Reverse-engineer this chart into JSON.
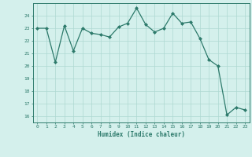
{
  "x": [
    0,
    1,
    2,
    3,
    4,
    5,
    6,
    7,
    8,
    9,
    10,
    11,
    12,
    13,
    14,
    15,
    16,
    17,
    18,
    19,
    20,
    21,
    22,
    23
  ],
  "y": [
    23,
    23,
    20.3,
    23.2,
    21.2,
    23,
    22.6,
    22.5,
    22.3,
    23.1,
    23.4,
    24.6,
    23.3,
    22.7,
    23,
    24.2,
    23.4,
    23.5,
    22.2,
    20.5,
    20.0,
    16.1,
    16.7,
    16.5
  ],
  "line_color": "#2d7a6b",
  "marker_color": "#2d7a6b",
  "bg_color": "#d4f0ec",
  "grid_color": "#aed8d2",
  "xlabel": "Humidex (Indice chaleur)",
  "xlim": [
    -0.5,
    23.5
  ],
  "ylim": [
    15.5,
    25.0
  ],
  "yticks": [
    16,
    17,
    18,
    19,
    20,
    21,
    22,
    23,
    24
  ],
  "xticks": [
    0,
    1,
    2,
    3,
    4,
    5,
    6,
    7,
    8,
    9,
    10,
    11,
    12,
    13,
    14,
    15,
    16,
    17,
    18,
    19,
    20,
    21,
    22,
    23
  ],
  "tick_color": "#2d7a6b",
  "label_color": "#2d7a6b"
}
